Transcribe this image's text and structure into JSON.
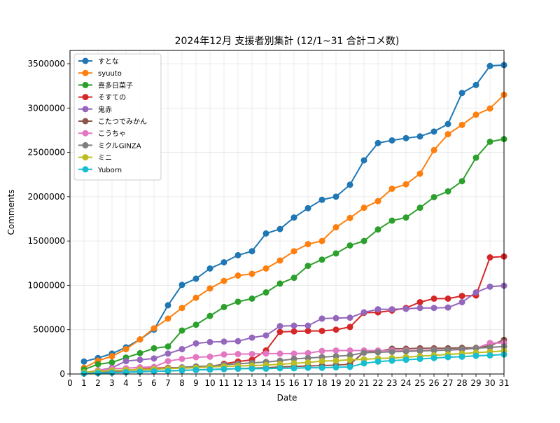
{
  "chart_data": {
    "type": "line",
    "title": "2024年12月 支援者別集計 (12/1~31 合計コメ数)",
    "xlabel": "Date",
    "ylabel": "Comments",
    "xlim": [
      0,
      31
    ],
    "ylim": [
      0,
      3650000
    ],
    "x_ticks": [
      0,
      1,
      2,
      3,
      4,
      5,
      6,
      7,
      8,
      9,
      10,
      11,
      12,
      13,
      14,
      15,
      16,
      17,
      18,
      19,
      20,
      21,
      22,
      23,
      24,
      25,
      26,
      27,
      28,
      29,
      30,
      31
    ],
    "y_ticks": [
      0,
      500000,
      1000000,
      1500000,
      2000000,
      2500000,
      3000000,
      3500000
    ],
    "grid": true,
    "legend_position": "upper-left",
    "x": [
      1,
      2,
      3,
      4,
      5,
      6,
      7,
      8,
      9,
      10,
      11,
      12,
      13,
      14,
      15,
      16,
      17,
      18,
      19,
      20,
      21,
      22,
      23,
      24,
      25,
      26,
      27,
      28,
      29,
      30,
      31
    ],
    "series": [
      {
        "name": "すとな",
        "color": "#1f77b4",
        "values": [
          140000,
          180000,
          230000,
          300000,
          390000,
          500000,
          775000,
          1005000,
          1075000,
          1190000,
          1260000,
          1340000,
          1385000,
          1585000,
          1635000,
          1765000,
          1870000,
          1965000,
          2000000,
          2135000,
          2410000,
          2605000,
          2635000,
          2660000,
          2680000,
          2735000,
          2820000,
          3170000,
          3260000,
          3475000,
          3485000
        ]
      },
      {
        "name": "syuuto",
        "color": "#ff7f0e",
        "values": [
          70000,
          150000,
          200000,
          280000,
          390000,
          515000,
          625000,
          745000,
          860000,
          965000,
          1050000,
          1110000,
          1130000,
          1190000,
          1280000,
          1385000,
          1465000,
          1500000,
          1655000,
          1760000,
          1875000,
          1950000,
          2090000,
          2140000,
          2260000,
          2525000,
          2705000,
          2810000,
          2925000,
          2995000,
          3150000
        ]
      },
      {
        "name": "喜多日菜子",
        "color": "#2ca02c",
        "values": [
          50000,
          110000,
          130000,
          185000,
          235000,
          290000,
          310000,
          490000,
          555000,
          655000,
          755000,
          815000,
          850000,
          920000,
          1020000,
          1085000,
          1220000,
          1290000,
          1360000,
          1450000,
          1500000,
          1630000,
          1730000,
          1765000,
          1875000,
          1995000,
          2060000,
          2175000,
          2440000,
          2620000,
          2650000
        ]
      },
      {
        "name": "そすての",
        "color": "#d62728",
        "values": [
          10000,
          20000,
          30000,
          40000,
          55000,
          65000,
          70000,
          70000,
          75000,
          80000,
          115000,
          140000,
          160000,
          265000,
          475000,
          480000,
          485000,
          485000,
          500000,
          530000,
          690000,
          695000,
          715000,
          745000,
          810000,
          850000,
          850000,
          880000,
          885000,
          1315000,
          1325000
        ]
      },
      {
        "name": "鬼赤",
        "color": "#9467bd",
        "values": [
          15000,
          40000,
          70000,
          145000,
          160000,
          175000,
          230000,
          280000,
          345000,
          360000,
          365000,
          370000,
          410000,
          435000,
          540000,
          545000,
          545000,
          625000,
          630000,
          635000,
          695000,
          730000,
          730000,
          735000,
          745000,
          745000,
          750000,
          810000,
          920000,
          985000,
          995000
        ]
      },
      {
        "name": "こたつでみかん",
        "color": "#8c564b",
        "values": [
          5000,
          10000,
          15000,
          20000,
          25000,
          30000,
          35000,
          40000,
          45000,
          50000,
          55000,
          60000,
          65000,
          70000,
          80000,
          85000,
          90000,
          95000,
          100000,
          110000,
          245000,
          255000,
          285000,
          285000,
          290000,
          290000,
          290000,
          295000,
          295000,
          320000,
          385000
        ]
      },
      {
        "name": "こうちゃ",
        "color": "#e377c2",
        "values": [
          15000,
          40000,
          60000,
          65000,
          75000,
          80000,
          145000,
          170000,
          190000,
          195000,
          220000,
          225000,
          225000,
          230000,
          230000,
          230000,
          235000,
          260000,
          265000,
          265000,
          265000,
          265000,
          265000,
          265000,
          265000,
          270000,
          270000,
          275000,
          290000,
          350000,
          350000
        ]
      },
      {
        "name": "ミクルGINZA",
        "color": "#7f7f7f",
        "values": [
          10000,
          25000,
          35000,
          40000,
          45000,
          50000,
          65000,
          75000,
          85000,
          90000,
          105000,
          115000,
          125000,
          135000,
          150000,
          170000,
          180000,
          190000,
          200000,
          210000,
          240000,
          245000,
          250000,
          255000,
          260000,
          265000,
          270000,
          280000,
          290000,
          300000,
          310000
        ]
      },
      {
        "name": "ミニ",
        "color": "#bcbd22",
        "values": [
          20000,
          30000,
          40000,
          45000,
          50000,
          55000,
          60000,
          65000,
          70000,
          80000,
          85000,
          90000,
          95000,
          100000,
          110000,
          120000,
          130000,
          145000,
          150000,
          160000,
          165000,
          175000,
          180000,
          190000,
          200000,
          210000,
          220000,
          230000,
          240000,
          250000,
          260000
        ]
      },
      {
        "name": "Yuborn",
        "color": "#17becf",
        "values": [
          5000,
          10000,
          15000,
          20000,
          25000,
          30000,
          35000,
          40000,
          45000,
          50000,
          55000,
          60000,
          60000,
          60000,
          65000,
          65000,
          70000,
          70000,
          75000,
          80000,
          120000,
          140000,
          150000,
          160000,
          170000,
          180000,
          190000,
          195000,
          205000,
          210000,
          220000
        ]
      }
    ]
  }
}
